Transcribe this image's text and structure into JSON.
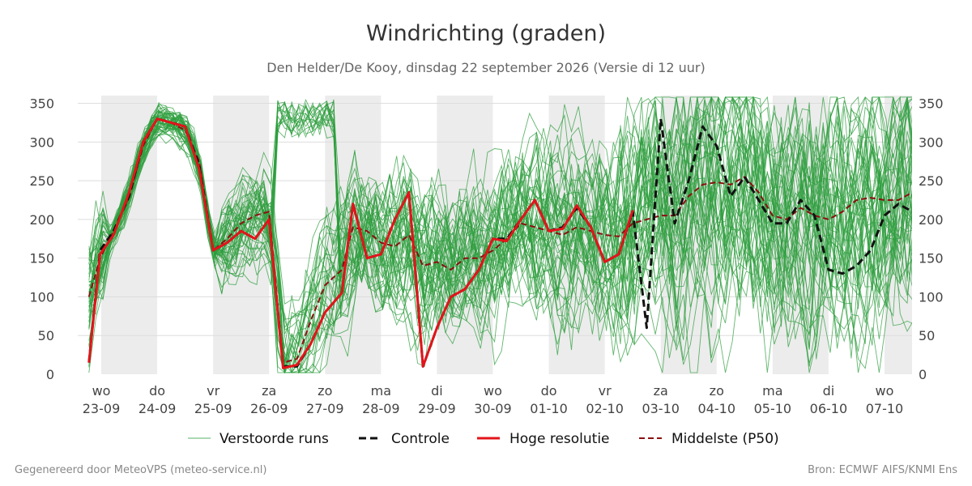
{
  "title": "Windrichting (graden)",
  "subtitle": "Den Helder/De Kooy, dinsdag 22 september 2026 (Versie di 12 uur)",
  "footer_left": "Gegenereerd door MeteoVPS (meteo-service.nl)",
  "footer_right": "Bron: ECMWF AIFS/KNMI Ens",
  "legend": {
    "ensemble": "Verstoorde runs",
    "control": "Controle",
    "hires": "Hoge resolutie",
    "median": "Middelste (P50)"
  },
  "colors": {
    "ensemble": "#2e9e3e",
    "control": "#111111",
    "hires": "#e3141a",
    "median": "#8b1010",
    "weekend_band": "#ececec",
    "grid": "#dddddd"
  },
  "chart_data": {
    "type": "line",
    "title": "Windrichting (graden)",
    "ylim": [
      0,
      360
    ],
    "yticks": [
      0,
      50,
      100,
      150,
      200,
      250,
      300,
      350
    ],
    "grid": true,
    "legend_position": "bottom",
    "x_unit": "days since start of 22-09 (ticks at day boundaries)",
    "xlim": [
      0.78,
      15.85
    ],
    "xticks": [
      {
        "x": 1,
        "day": "wo",
        "date": "23-09"
      },
      {
        "x": 2,
        "day": "do",
        "date": "24-09"
      },
      {
        "x": 3,
        "day": "vr",
        "date": "25-09"
      },
      {
        "x": 4,
        "day": "za",
        "date": "26-09"
      },
      {
        "x": 5,
        "day": "zo",
        "date": "27-09"
      },
      {
        "x": 6,
        "day": "ma",
        "date": "28-09"
      },
      {
        "x": 7,
        "day": "di",
        "date": "29-09"
      },
      {
        "x": 8,
        "day": "wo",
        "date": "30-09"
      },
      {
        "x": 9,
        "day": "do",
        "date": "01-10"
      },
      {
        "x": 10,
        "day": "vr",
        "date": "02-10"
      },
      {
        "x": 11,
        "day": "za",
        "date": "03-10"
      },
      {
        "x": 12,
        "day": "zo",
        "date": "04-10"
      },
      {
        "x": 13,
        "day": "ma",
        "date": "05-10"
      },
      {
        "x": 14,
        "day": "di",
        "date": "06-10"
      },
      {
        "x": 15,
        "day": "wo",
        "date": "07-10"
      }
    ],
    "shaded_bands": [
      [
        1,
        2
      ],
      [
        3,
        4
      ],
      [
        5,
        6
      ],
      [
        7,
        8
      ],
      [
        9,
        10
      ],
      [
        11,
        12
      ],
      [
        13,
        14
      ],
      [
        15,
        15.85
      ]
    ],
    "series": [
      {
        "name": "Controle",
        "style": "dashed",
        "points": [
          [
            0.78,
            15
          ],
          [
            0.98,
            160
          ],
          [
            1.22,
            185
          ],
          [
            1.5,
            230
          ],
          [
            1.75,
            300
          ],
          [
            2.0,
            330
          ],
          [
            2.25,
            325
          ],
          [
            2.5,
            320
          ],
          [
            2.75,
            270
          ],
          [
            3.0,
            160
          ],
          [
            3.25,
            170
          ],
          [
            3.5,
            185
          ],
          [
            3.75,
            175
          ],
          [
            4.0,
            200
          ],
          [
            4.25,
            10
          ],
          [
            4.5,
            10
          ],
          [
            4.75,
            40
          ],
          [
            5.0,
            80
          ],
          [
            5.3,
            105
          ],
          [
            5.5,
            220
          ],
          [
            5.75,
            150
          ],
          [
            6.0,
            155
          ],
          [
            6.25,
            200
          ],
          [
            6.5,
            235
          ],
          [
            6.75,
            10
          ],
          [
            7.0,
            60
          ],
          [
            7.25,
            100
          ],
          [
            7.5,
            110
          ],
          [
            7.75,
            135
          ],
          [
            8.0,
            175
          ],
          [
            8.25,
            175
          ],
          [
            8.5,
            200
          ],
          [
            8.75,
            225
          ],
          [
            9.0,
            185
          ],
          [
            9.25,
            190
          ],
          [
            9.5,
            215
          ],
          [
            9.75,
            190
          ],
          [
            10.0,
            145
          ],
          [
            10.25,
            155
          ],
          [
            10.5,
            210
          ],
          [
            10.75,
            60
          ],
          [
            11.0,
            330
          ],
          [
            11.25,
            195
          ],
          [
            11.5,
            250
          ],
          [
            11.75,
            320
          ],
          [
            12.0,
            295
          ],
          [
            12.25,
            230
          ],
          [
            12.5,
            255
          ],
          [
            12.75,
            225
          ],
          [
            13.0,
            195
          ],
          [
            13.25,
            195
          ],
          [
            13.5,
            225
          ],
          [
            13.75,
            205
          ],
          [
            14.0,
            135
          ],
          [
            14.25,
            130
          ],
          [
            14.5,
            140
          ],
          [
            14.75,
            160
          ],
          [
            15.0,
            205
          ],
          [
            15.25,
            220
          ],
          [
            15.5,
            210
          ],
          [
            15.85,
            205
          ]
        ]
      },
      {
        "name": "Hoge resolutie",
        "style": "solid",
        "points": [
          [
            0.78,
            15
          ],
          [
            0.98,
            155
          ],
          [
            1.22,
            180
          ],
          [
            1.5,
            235
          ],
          [
            1.75,
            300
          ],
          [
            2.0,
            330
          ],
          [
            2.25,
            325
          ],
          [
            2.5,
            320
          ],
          [
            2.75,
            265
          ],
          [
            3.0,
            160
          ],
          [
            3.25,
            170
          ],
          [
            3.5,
            185
          ],
          [
            3.75,
            175
          ],
          [
            4.0,
            200
          ],
          [
            4.25,
            8
          ],
          [
            4.5,
            12
          ],
          [
            4.75,
            40
          ],
          [
            5.0,
            80
          ],
          [
            5.3,
            105
          ],
          [
            5.5,
            220
          ],
          [
            5.75,
            150
          ],
          [
            6.0,
            155
          ],
          [
            6.25,
            200
          ],
          [
            6.5,
            235
          ],
          [
            6.75,
            10
          ],
          [
            7.0,
            60
          ],
          [
            7.25,
            100
          ],
          [
            7.5,
            110
          ],
          [
            7.75,
            135
          ],
          [
            8.0,
            175
          ],
          [
            8.25,
            172
          ],
          [
            8.5,
            200
          ],
          [
            8.75,
            225
          ],
          [
            9.0,
            185
          ],
          [
            9.25,
            188
          ],
          [
            9.5,
            218
          ],
          [
            9.75,
            190
          ],
          [
            10.0,
            145
          ],
          [
            10.25,
            155
          ],
          [
            10.5,
            212
          ]
        ]
      },
      {
        "name": "Middelste (P50)",
        "style": "dashed",
        "points": [
          [
            0.78,
            100
          ],
          [
            0.98,
            150
          ],
          [
            1.22,
            185
          ],
          [
            1.5,
            230
          ],
          [
            1.75,
            295
          ],
          [
            2.0,
            330
          ],
          [
            2.25,
            325
          ],
          [
            2.5,
            315
          ],
          [
            2.75,
            275
          ],
          [
            3.0,
            160
          ],
          [
            3.25,
            175
          ],
          [
            3.5,
            195
          ],
          [
            3.75,
            205
          ],
          [
            4.0,
            210
          ],
          [
            4.25,
            15
          ],
          [
            4.5,
            20
          ],
          [
            4.75,
            70
          ],
          [
            5.0,
            115
          ],
          [
            5.3,
            135
          ],
          [
            5.5,
            190
          ],
          [
            5.75,
            185
          ],
          [
            6.0,
            170
          ],
          [
            6.25,
            165
          ],
          [
            6.5,
            180
          ],
          [
            6.75,
            140
          ],
          [
            7.0,
            145
          ],
          [
            7.25,
            135
          ],
          [
            7.5,
            150
          ],
          [
            7.75,
            150
          ],
          [
            8.0,
            160
          ],
          [
            8.25,
            175
          ],
          [
            8.5,
            195
          ],
          [
            8.75,
            190
          ],
          [
            9.0,
            185
          ],
          [
            9.25,
            180
          ],
          [
            9.5,
            190
          ],
          [
            9.75,
            185
          ],
          [
            10.0,
            180
          ],
          [
            10.25,
            178
          ],
          [
            10.5,
            195
          ],
          [
            10.75,
            200
          ],
          [
            11.0,
            205
          ],
          [
            11.25,
            205
          ],
          [
            11.5,
            230
          ],
          [
            11.75,
            245
          ],
          [
            12.0,
            248
          ],
          [
            12.25,
            245
          ],
          [
            12.5,
            255
          ],
          [
            12.75,
            235
          ],
          [
            13.0,
            205
          ],
          [
            13.25,
            200
          ],
          [
            13.5,
            215
          ],
          [
            13.75,
            205
          ],
          [
            14.0,
            200
          ],
          [
            14.25,
            210
          ],
          [
            14.5,
            225
          ],
          [
            14.75,
            228
          ],
          [
            15.0,
            225
          ],
          [
            15.25,
            225
          ],
          [
            15.5,
            235
          ],
          [
            15.85,
            245
          ]
        ]
      }
    ],
    "ensemble_members": 50,
    "ensemble_note": "Verstoorde runs: ~50 thin green lines, tight near 150-330 until 25-09, widely scattered 0-360 afterwards"
  }
}
